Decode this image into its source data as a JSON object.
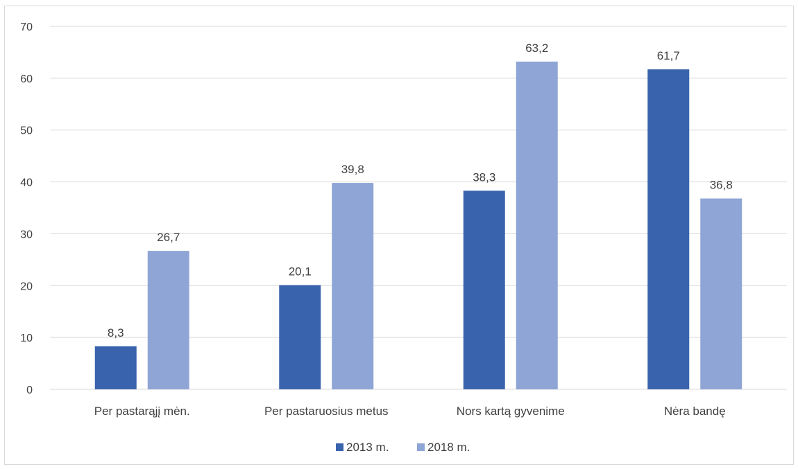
{
  "chart_data": {
    "type": "bar",
    "title": "",
    "xlabel": "",
    "ylabel": "",
    "categories": [
      "Per pastarąjį mėn.",
      "Per pastaruosius metus",
      "Nors kartą gyvenime",
      "Nėra bandę"
    ],
    "series": [
      {
        "name": "2013 m.",
        "values": [
          8.3,
          20.1,
          38.3,
          61.7
        ],
        "labels": [
          "8,3",
          "20,1",
          "38,3",
          "61,7"
        ],
        "color": "#3a63ad"
      },
      {
        "name": "2018 m.",
        "values": [
          26.7,
          39.8,
          63.2,
          36.8
        ],
        "labels": [
          "26,7",
          "39,8",
          "63,2",
          "36,8"
        ],
        "color": "#8fa5d6"
      }
    ],
    "ylim": [
      0,
      70
    ],
    "yticks": [
      0,
      10,
      20,
      30,
      40,
      50,
      60,
      70
    ],
    "grid": true,
    "legend_position": "bottom"
  },
  "colors": {
    "grid": "#d9d9d9",
    "text": "#404040",
    "border": "#d9d9d9"
  }
}
